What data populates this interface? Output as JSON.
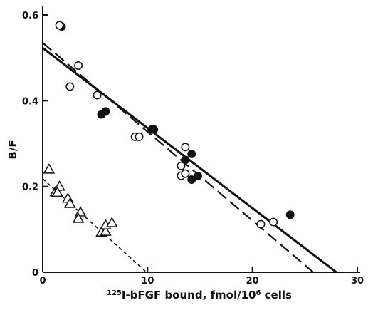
{
  "chart_data": {
    "type": "scatter",
    "title": "",
    "xlabel_prefix": "125",
    "xlabel_main": "I-bFGF bound, fmol/10",
    "xlabel_exp": "6",
    "xlabel_suffix": " cells",
    "ylabel": "B/F",
    "xlim": [
      0,
      30
    ],
    "ylim": [
      0,
      0.6
    ],
    "x_ticks": [
      0,
      10,
      20,
      30
    ],
    "x_tick_labels": [
      "0",
      "10",
      "20",
      "30"
    ],
    "y_ticks": [
      0,
      0.2,
      0.4,
      0.6
    ],
    "y_tick_labels": [
      "0",
      "0.2",
      "0.4",
      "0.6"
    ],
    "grid": false,
    "series": [
      {
        "marker": "circle-filled",
        "points": [
          [
            1.8,
            0.573
          ],
          [
            5.6,
            0.368
          ],
          [
            6.0,
            0.375
          ],
          [
            10.4,
            0.333
          ],
          [
            10.6,
            0.333
          ],
          [
            13.6,
            0.262
          ],
          [
            14.2,
            0.216
          ],
          [
            14.8,
            0.224
          ],
          [
            14.2,
            0.276
          ],
          [
            23.6,
            0.134
          ]
        ]
      },
      {
        "marker": "circle-open",
        "points": [
          [
            1.6,
            0.576
          ],
          [
            3.4,
            0.482
          ],
          [
            2.6,
            0.433
          ],
          [
            5.2,
            0.413
          ],
          [
            8.8,
            0.316
          ],
          [
            9.2,
            0.316
          ],
          [
            13.2,
            0.248
          ],
          [
            13.6,
            0.292
          ],
          [
            13.2,
            0.225
          ],
          [
            13.6,
            0.23
          ],
          [
            20.8,
            0.112
          ],
          [
            22.0,
            0.117
          ]
        ]
      },
      {
        "marker": "triangle-open",
        "points": [
          [
            0.6,
            0.24
          ],
          [
            1.2,
            0.187
          ],
          [
            1.6,
            0.2
          ],
          [
            1.4,
            0.186
          ],
          [
            2.4,
            0.172
          ],
          [
            2.6,
            0.16
          ],
          [
            3.6,
            0.14
          ],
          [
            3.4,
            0.125
          ],
          [
            5.6,
            0.093
          ],
          [
            6.0,
            0.095
          ],
          [
            6.0,
            0.11
          ],
          [
            6.6,
            0.115
          ]
        ]
      }
    ],
    "lines": [
      {
        "style": "solid",
        "from": [
          0,
          0.523
        ],
        "to": [
          28.0,
          0.0
        ]
      },
      {
        "style": "long-dash",
        "from": [
          0,
          0.535
        ],
        "to": [
          25.8,
          0.0
        ]
      },
      {
        "style": "short-dash",
        "from": [
          0,
          0.218
        ],
        "to": [
          9.9,
          0.0
        ]
      }
    ]
  }
}
